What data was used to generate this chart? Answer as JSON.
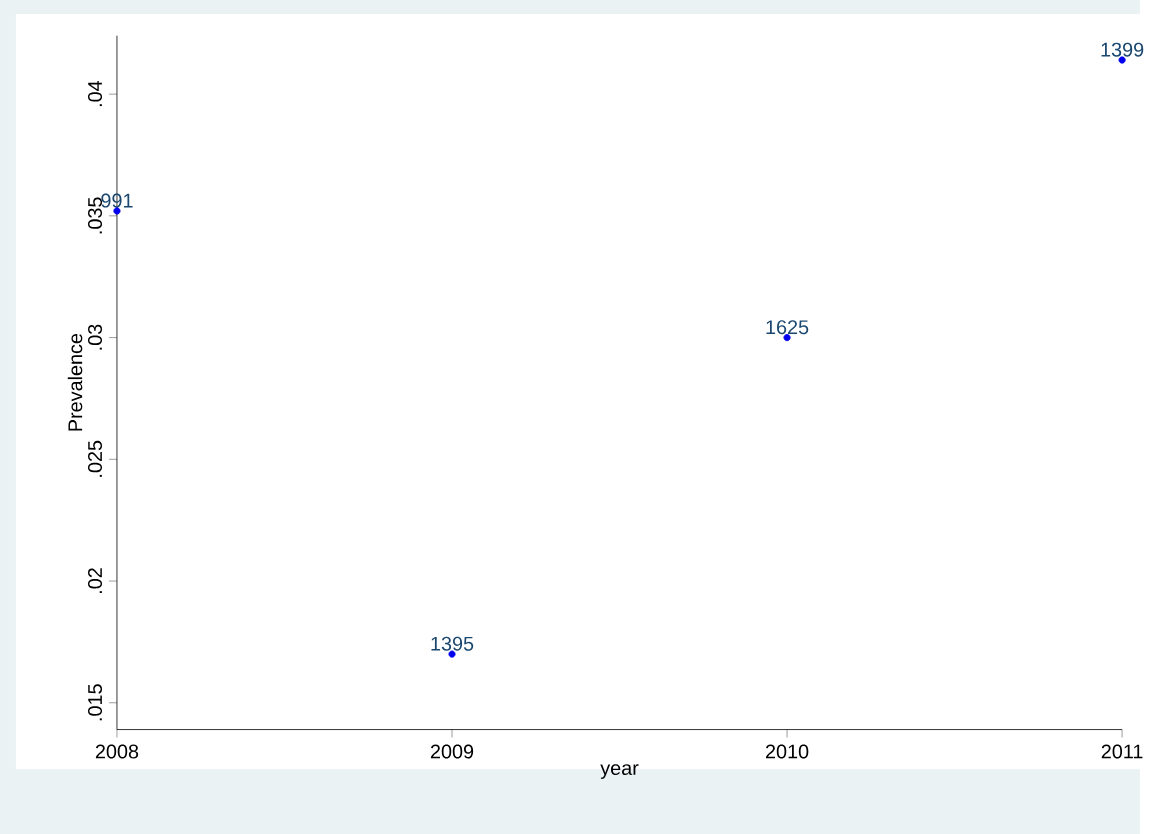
{
  "chart_data": {
    "type": "scatter",
    "xlabel": "year",
    "ylabel": "Prevalence",
    "x": [
      2008,
      2009,
      2010,
      2011
    ],
    "series": [
      {
        "color": "#0000ee",
        "values": [
          0.0352,
          0.017,
          0.03,
          0.0414
        ]
      }
    ],
    "xlim": [
      2008,
      2011
    ],
    "xticks": [
      2008,
      2009,
      2010,
      2011
    ],
    "ylim": [
      0.0139,
      0.0424
    ],
    "yticks": [
      {
        "value": 0.015,
        "label": ".015"
      },
      {
        "value": 0.02,
        "label": ".02"
      },
      {
        "value": 0.025,
        "label": ".025"
      },
      {
        "value": 0.03,
        "label": ".03"
      },
      {
        "value": 0.035,
        "label": ".035"
      },
      {
        "value": 0.04,
        "label": ".04"
      }
    ],
    "marker": "circle",
    "grid": false,
    "annotations": [
      {
        "text": "991",
        "x": 2008,
        "y": 0.0352
      },
      {
        "text": "1395",
        "x": 2009,
        "y": 0.017
      },
      {
        "text": "1625",
        "x": 2010,
        "y": 0.03
      },
      {
        "text": "1399",
        "x": 2011,
        "y": 0.0414
      }
    ]
  }
}
